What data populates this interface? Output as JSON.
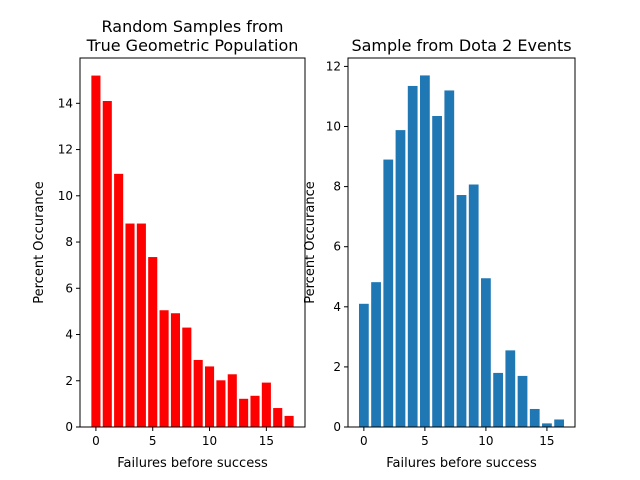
{
  "chart_data": [
    {
      "type": "bar",
      "title_lines": [
        "Random Samples from",
        "True Geometric Population"
      ],
      "xlabel": "Failures before success",
      "ylabel": "Percent Occurance",
      "color": "#ff0000",
      "x": [
        0,
        1,
        2,
        3,
        4,
        5,
        6,
        7,
        8,
        9,
        10,
        11,
        12,
        13,
        14,
        15,
        16,
        17
      ],
      "values": [
        15.2,
        14.1,
        10.95,
        8.8,
        8.8,
        7.35,
        5.05,
        4.92,
        4.3,
        2.9,
        2.62,
        2.02,
        2.28,
        1.22,
        1.35,
        1.92,
        0.82,
        0.48
      ],
      "xlim": [
        -1.4,
        18.4
      ],
      "ylim": [
        0,
        15.96
      ],
      "xticks": [
        0,
        5,
        10,
        15
      ],
      "yticks": [
        0,
        2,
        4,
        6,
        8,
        10,
        12,
        14
      ],
      "grid": false,
      "legend": "none"
    },
    {
      "type": "bar",
      "title_lines": [
        "Sample from Dota 2 Events"
      ],
      "xlabel": "Failures before success",
      "ylabel": "Percent Occurance",
      "color": "#1f77b4",
      "x": [
        0,
        1,
        2,
        3,
        4,
        5,
        6,
        7,
        8,
        9,
        10,
        11,
        12,
        13,
        14,
        15,
        16
      ],
      "values": [
        4.1,
        4.82,
        8.9,
        9.88,
        11.35,
        11.7,
        10.35,
        11.2,
        7.72,
        8.07,
        4.95,
        1.8,
        2.55,
        1.7,
        0.6,
        0.12,
        0.25
      ],
      "xlim": [
        -1.3,
        17.3
      ],
      "ylim": [
        0,
        12.28
      ],
      "xticks": [
        0,
        5,
        10,
        15
      ],
      "yticks": [
        0,
        2,
        4,
        6,
        8,
        10,
        12
      ],
      "grid": false,
      "legend": "none"
    }
  ]
}
